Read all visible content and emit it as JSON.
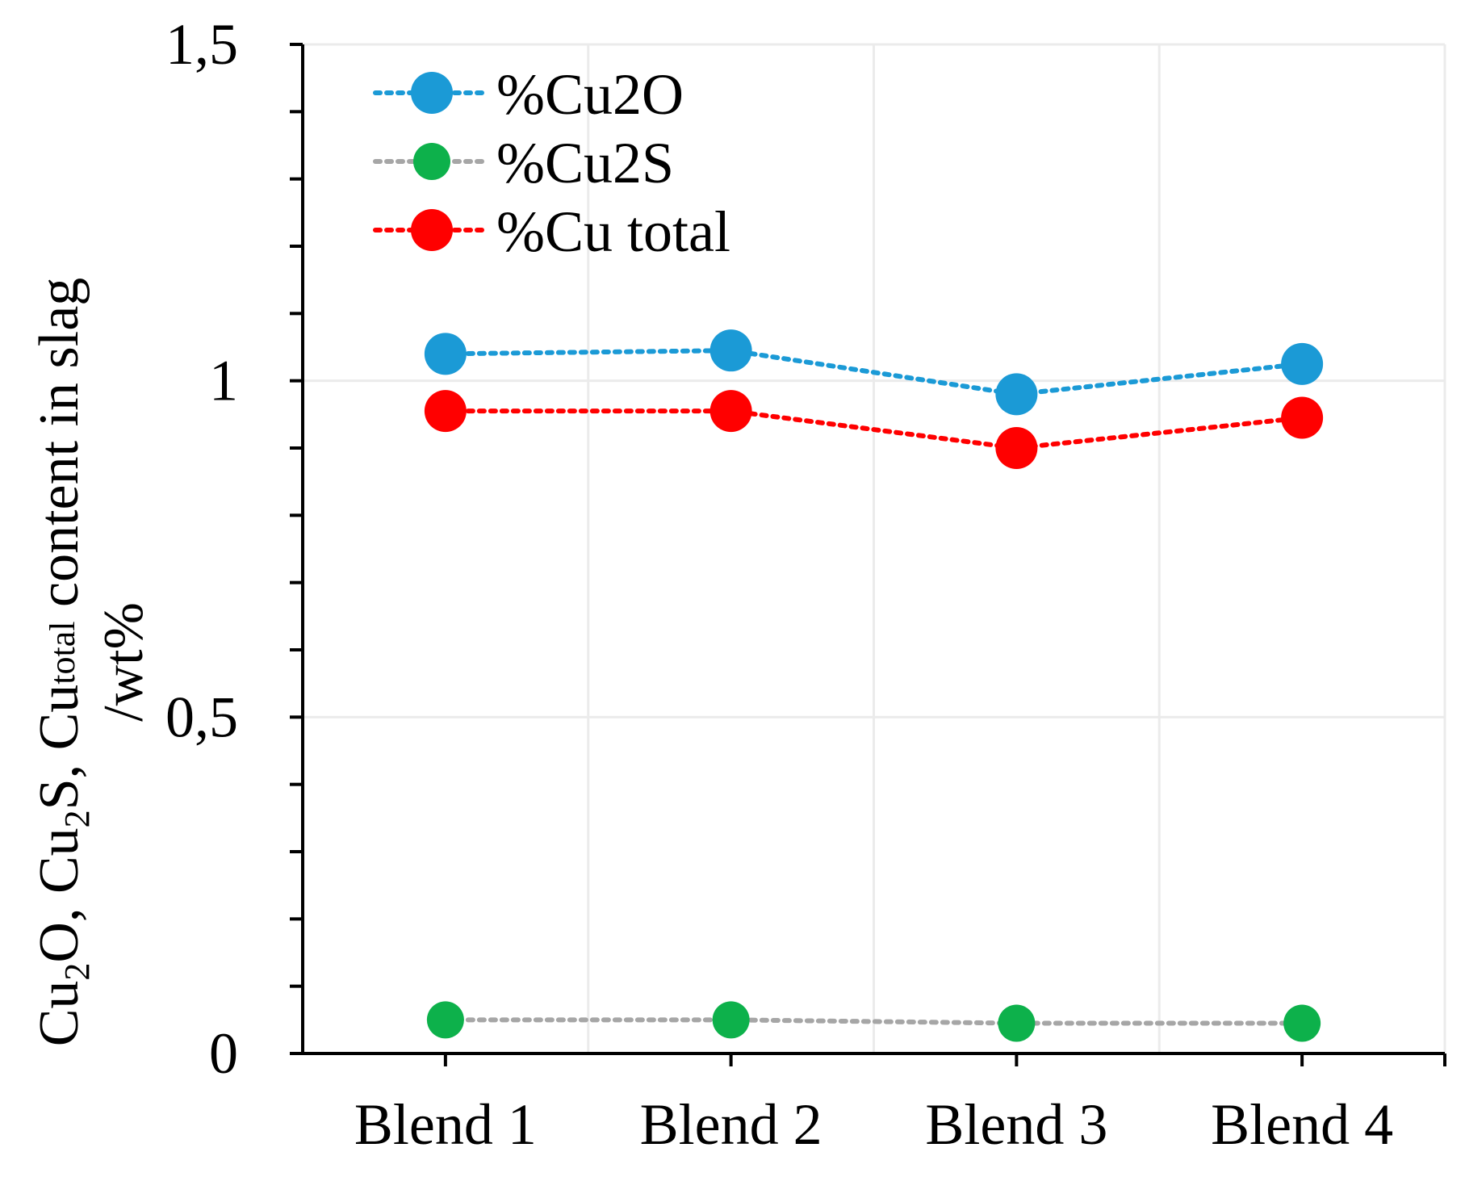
{
  "chart_data": {
    "type": "line",
    "title": "",
    "xlabel": "",
    "ylabel": {
      "line1_parts": [
        "Cu",
        "2",
        "O, Cu",
        "2",
        "S, Cu",
        "total",
        " content in slag"
      ],
      "line2": "/wt%"
    },
    "categories": [
      "Blend 1",
      "Blend 2",
      "Blend 3",
      "Blend 4"
    ],
    "ylim": [
      0,
      1.5
    ],
    "yticks": [
      0,
      0.5,
      1,
      1.5
    ],
    "ytick_labels": [
      "0",
      "0,5",
      "1",
      "1,5"
    ],
    "grid": true,
    "legend_position": "top-left",
    "series": [
      {
        "name": "%Cu2O",
        "color": "#1B9AD6",
        "line_color": "#1B9AD6",
        "marker_size": "large",
        "values": [
          1.04,
          1.045,
          0.98,
          1.025
        ]
      },
      {
        "name": "%Cu2S",
        "color": "#0DB14B",
        "line_color": "#A6A6A6",
        "marker_size": "small",
        "values": [
          0.05,
          0.05,
          0.045,
          0.045
        ]
      },
      {
        "name": "%Cu total",
        "color": "#FF0000",
        "line_color": "#FF0000",
        "marker_size": "large",
        "values": [
          0.955,
          0.955,
          0.9,
          0.945
        ]
      }
    ]
  }
}
